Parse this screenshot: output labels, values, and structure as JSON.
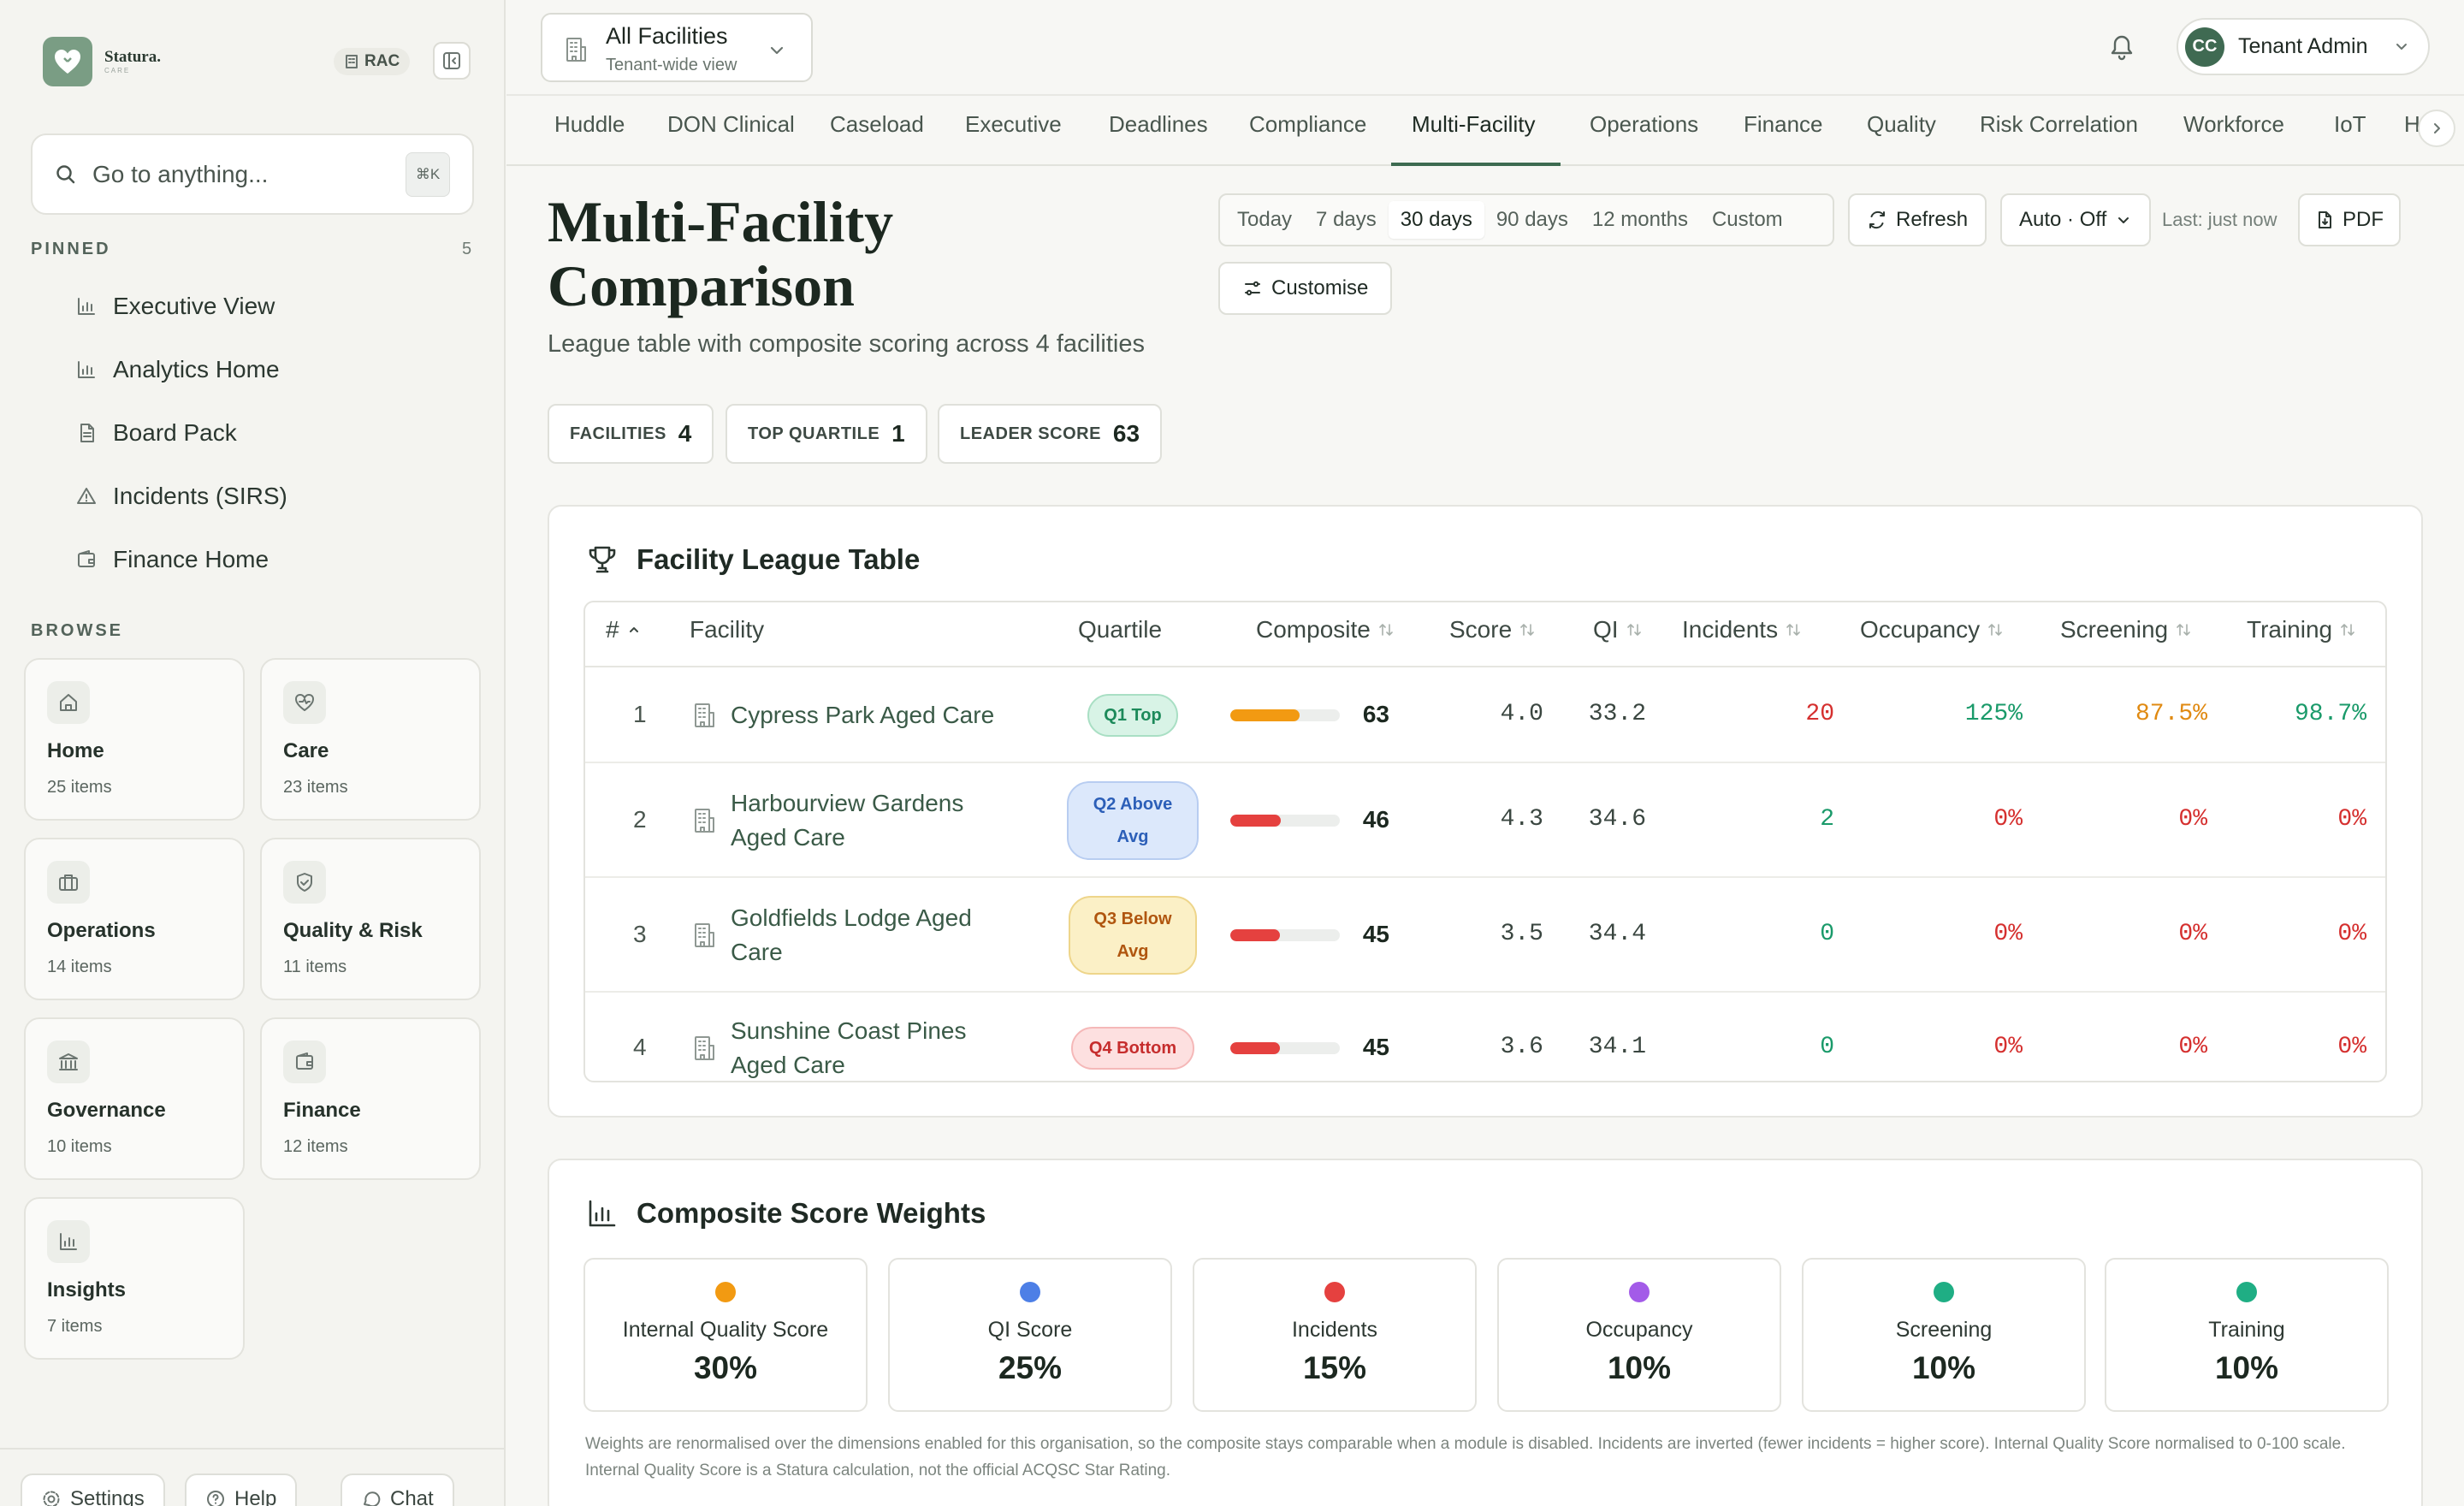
{
  "brand": {
    "name": "Statura.",
    "sub": "CARE",
    "org_badge": "RAC"
  },
  "search": {
    "placeholder": "Go to anything...",
    "shortcut": "⌘K"
  },
  "pinned": {
    "label": "PINNED",
    "count": "5",
    "items": [
      {
        "label": "Executive View",
        "icon": "bar-chart-icon"
      },
      {
        "label": "Analytics Home",
        "icon": "bar-chart-icon"
      },
      {
        "label": "Board Pack",
        "icon": "document-icon"
      },
      {
        "label": "Incidents (SIRS)",
        "icon": "warning-icon"
      },
      {
        "label": "Finance Home",
        "icon": "wallet-icon"
      }
    ]
  },
  "browse": {
    "label": "BROWSE",
    "tiles": [
      {
        "title": "Home",
        "sub": "25 items",
        "icon": "home-icon"
      },
      {
        "title": "Care",
        "sub": "23 items",
        "icon": "heart-pulse-icon"
      },
      {
        "title": "Operations",
        "sub": "14 items",
        "icon": "briefcase-icon"
      },
      {
        "title": "Quality & Risk",
        "sub": "11 items",
        "icon": "shield-check-icon"
      },
      {
        "title": "Governance",
        "sub": "10 items",
        "icon": "landmark-icon"
      },
      {
        "title": "Finance",
        "sub": "12 items",
        "icon": "wallet-icon"
      },
      {
        "title": "Insights",
        "sub": "7 items",
        "icon": "bar-chart-icon"
      }
    ]
  },
  "footer": {
    "settings": "Settings",
    "help": "Help",
    "chat": "Chat"
  },
  "facility_selector": {
    "title": "All Facilities",
    "sub": "Tenant-wide view"
  },
  "user": {
    "initials": "CC",
    "name": "Tenant Admin"
  },
  "tabs": [
    "Huddle",
    "DON Clinical",
    "Caseload",
    "Executive",
    "Deadlines",
    "Compliance",
    "Multi-Facility",
    "Operations",
    "Finance",
    "Quality",
    "Risk Correlation",
    "Workforce",
    "IoT",
    "H"
  ],
  "active_tab": "Multi-Facility",
  "page": {
    "title_line1": "Multi-Facility",
    "title_line2": "Comparison",
    "subtitle": "League table with composite scoring across 4 facilities"
  },
  "ranges": [
    "Today",
    "7 days",
    "30 days",
    "90 days",
    "12 months",
    "Custom"
  ],
  "active_range": "30 days",
  "toolbar": {
    "refresh": "Refresh",
    "auto": "Auto · Off",
    "last": "Last: just now",
    "pdf": "PDF",
    "customise": "Customise"
  },
  "stats": [
    {
      "label": "FACILITIES",
      "value": "4"
    },
    {
      "label": "TOP QUARTILE",
      "value": "1"
    },
    {
      "label": "LEADER SCORE",
      "value": "63"
    }
  ],
  "league": {
    "title": "Facility League Table",
    "columns": {
      "rank": "#",
      "facility": "Facility",
      "quartile": "Quartile",
      "composite": "Composite",
      "score": "Score",
      "qi": "QI",
      "incidents": "Incidents",
      "occupancy": "Occupancy",
      "screening": "Screening",
      "training": "Training"
    },
    "rows": [
      {
        "rank": "1",
        "facility": "Cypress Park Aged Care",
        "quartile": "Q1 Top",
        "composite": "63",
        "composite_pct": 63,
        "bar_color": "#f29a12",
        "score": "4.0",
        "qi": "33.2",
        "incidents": "20",
        "occupancy": "125%",
        "screening": "87.5%",
        "training": "98.7%"
      },
      {
        "rank": "2",
        "facility": "Harbourview Gardens Aged Care",
        "quartile": "Q2 Above Avg",
        "composite": "46",
        "composite_pct": 46,
        "bar_color": "#e5413f",
        "score": "4.3",
        "qi": "34.6",
        "incidents": "2",
        "occupancy": "0%",
        "screening": "0%",
        "training": "0%"
      },
      {
        "rank": "3",
        "facility": "Goldfields Lodge Aged Care",
        "quartile": "Q3 Below Avg",
        "composite": "45",
        "composite_pct": 45,
        "bar_color": "#e5413f",
        "score": "3.5",
        "qi": "34.4",
        "incidents": "0",
        "occupancy": "0%",
        "screening": "0%",
        "training": "0%"
      },
      {
        "rank": "4",
        "facility": "Sunshine Coast Pines Aged Care",
        "quartile": "Q4 Bottom",
        "composite": "45",
        "composite_pct": 45,
        "bar_color": "#e5413f",
        "score": "3.6",
        "qi": "34.1",
        "incidents": "0",
        "occupancy": "0%",
        "screening": "0%",
        "training": "0%"
      }
    ]
  },
  "weights": {
    "title": "Composite Score Weights",
    "items": [
      {
        "label": "Internal Quality Score",
        "value": "30%",
        "color": "#f29a12"
      },
      {
        "label": "QI Score",
        "value": "25%",
        "color": "#4d7fe6"
      },
      {
        "label": "Incidents",
        "value": "15%",
        "color": "#e5413f"
      },
      {
        "label": "Occupancy",
        "value": "10%",
        "color": "#a35be8"
      },
      {
        "label": "Screening",
        "value": "10%",
        "color": "#1fae84"
      },
      {
        "label": "Training",
        "value": "10%",
        "color": "#1fae84"
      }
    ],
    "note": "Weights are renormalised over the dimensions enabled for this organisation, so the composite stays comparable when a module is disabled. Incidents are inverted (fewer incidents = higher score). Internal Quality Score normalised to 0-100 scale. Internal Quality Score is a Statura calculation, not the official ACQSC Star Rating."
  }
}
